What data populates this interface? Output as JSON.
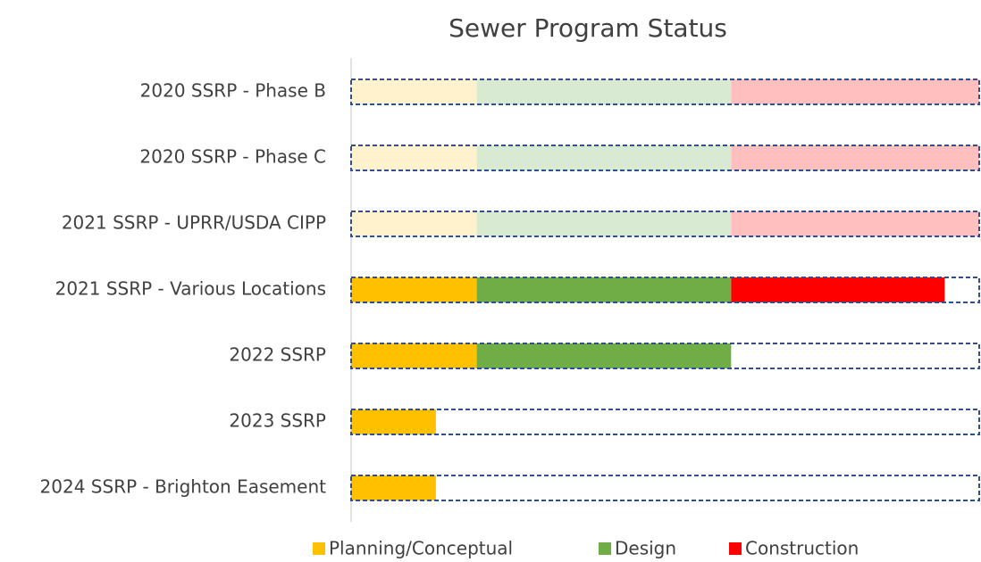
{
  "chart_data": {
    "type": "stacked-barh",
    "title": "Sewer Program Status",
    "categories": [
      "2020 SSRP - Phase B",
      "2020 SSRP - Phase C",
      "2021 SSRP - UPRR/USDA CIPP",
      "2021 SSRP - Various Locations",
      "2022 SSRP",
      "2023 SSRP",
      "2024 SSRP - Brighton Easement"
    ],
    "series": [
      {
        "name": "Planning/Conceptual",
        "color": "#ffc000",
        "light_color": "#fff2cc",
        "values": [
          20,
          20,
          20,
          20,
          20,
          13.5,
          13.5
        ]
      },
      {
        "name": "Design",
        "color": "#70ad47",
        "light_color": "#d9ead3",
        "values": [
          40.5,
          40.5,
          40.5,
          40.5,
          40.5,
          null,
          null
        ]
      },
      {
        "name": "Construction",
        "color": "#ff0000",
        "light_color": "#ffbfbf",
        "values": [
          39.5,
          39.5,
          39.5,
          34,
          null,
          null,
          null
        ]
      }
    ],
    "faded": [
      true,
      true,
      true,
      false,
      false,
      false,
      false
    ],
    "xlim": [
      0,
      100
    ],
    "outline_color": "#2f4f8f",
    "legend": "bottom"
  }
}
